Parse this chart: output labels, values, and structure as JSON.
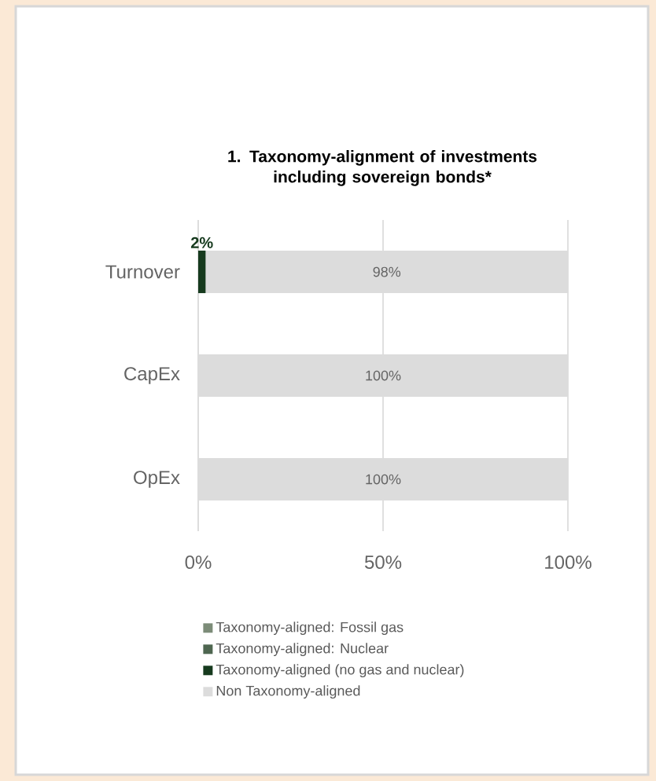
{
  "chart_data": {
    "type": "bar",
    "orientation": "horizontal",
    "stacked": true,
    "title": "1. Taxonomy-alignment of investments including sovereign bonds*",
    "categories": [
      "Turnover",
      "CapEx",
      "OpEx"
    ],
    "series": [
      {
        "name": "Taxonomy-aligned: Fossil gas",
        "color": "#7c8c78",
        "values": [
          0,
          0,
          0
        ]
      },
      {
        "name": "Taxonomy-aligned: Nuclear",
        "color": "#4e6650",
        "values": [
          0,
          0,
          0
        ]
      },
      {
        "name": "Taxonomy-aligned (no gas and nuclear)",
        "color": "#163a1e",
        "values": [
          2,
          0,
          0
        ],
        "value_labels": [
          "2%",
          null,
          null
        ]
      },
      {
        "name": "Non Taxonomy-aligned",
        "color": "#dcdcdc",
        "values": [
          98,
          100,
          100
        ],
        "value_labels": [
          "98%",
          "100%",
          "100%"
        ]
      }
    ],
    "xlim": [
      0,
      100
    ],
    "xticks": [
      {
        "value": 0,
        "label": "0%"
      },
      {
        "value": 50,
        "label": "50%"
      },
      {
        "value": 100,
        "label": "100%"
      }
    ],
    "grid": "x",
    "legend": "bottom"
  }
}
